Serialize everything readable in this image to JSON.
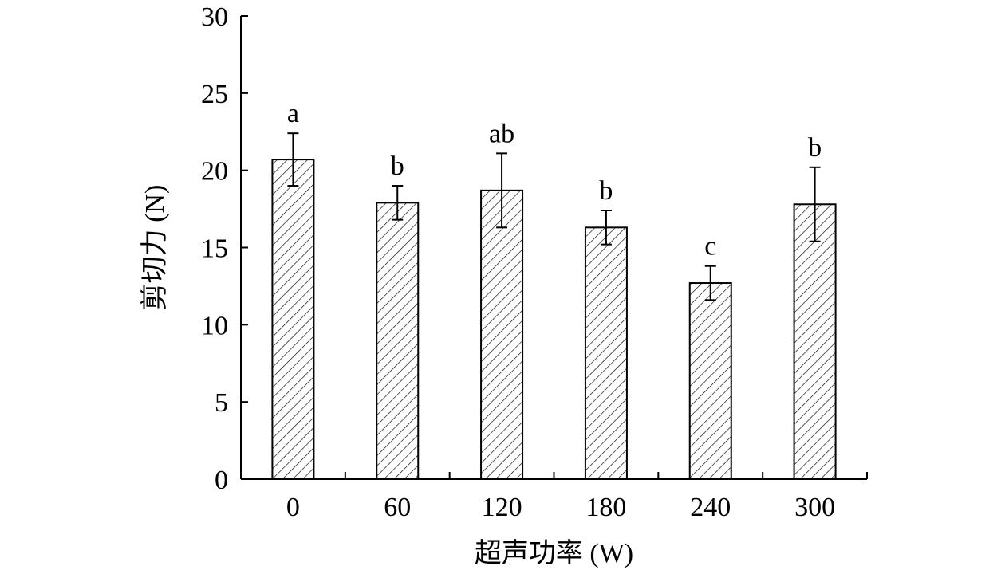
{
  "chart_data": {
    "type": "bar",
    "categories": [
      "0",
      "60",
      "120",
      "180",
      "240",
      "300"
    ],
    "values": [
      20.7,
      17.9,
      18.7,
      16.3,
      12.7,
      17.8
    ],
    "errors": [
      1.7,
      1.1,
      2.4,
      1.1,
      1.1,
      2.4
    ],
    "significance": [
      "a",
      "b",
      "ab",
      "b",
      "c",
      "b"
    ],
    "xlabel": "超声功率 (W)",
    "ylabel": "剪切力 (N)",
    "ylim": [
      0,
      30
    ],
    "yticks": [
      0,
      5,
      10,
      15,
      20,
      25,
      30
    ],
    "bar_fill": "hatched",
    "bar_color": "#000000",
    "grid": false
  }
}
